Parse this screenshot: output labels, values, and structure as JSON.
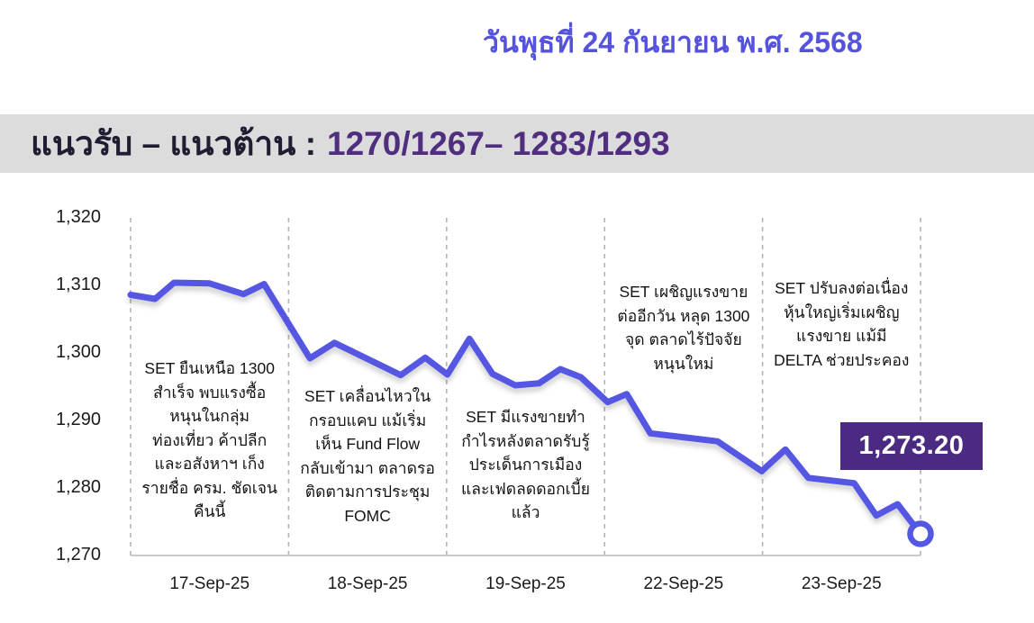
{
  "header": {
    "date": "วันพุธที่ 24 กันยายน พ.ศ. 2568"
  },
  "banner": {
    "label": "แนวรับ – แนวต้าน :",
    "values": "1270/1267– 1283/1293",
    "label_color": "#201c31",
    "values_color": "#4F2D7F",
    "background_color": "#dcdcdc"
  },
  "chart_data": {
    "type": "line",
    "title": "",
    "xlabel": "",
    "ylabel": "",
    "ylim": [
      1270,
      1320
    ],
    "grid": "vertical-dashed-section-dividers",
    "line_color": "#5457E2",
    "badge_color": "#4B2B82",
    "y_ticks": [
      "1,320",
      "1,310",
      "1,300",
      "1,290",
      "1,280",
      "1,270"
    ],
    "y_tick_values": [
      1320,
      1310,
      1300,
      1290,
      1280,
      1270
    ],
    "x_categories": [
      "17-Sep-25",
      "18-Sep-25",
      "19-Sep-25",
      "22-Sep-25",
      "23-Sep-25"
    ],
    "points": [
      [
        0.0,
        1308.6
      ],
      [
        0.031,
        1308.0
      ],
      [
        0.055,
        1310.4
      ],
      [
        0.1,
        1310.3
      ],
      [
        0.143,
        1308.7
      ],
      [
        0.169,
        1310.2
      ],
      [
        0.227,
        1299.2
      ],
      [
        0.258,
        1301.5
      ],
      [
        0.342,
        1296.7
      ],
      [
        0.373,
        1299.3
      ],
      [
        0.401,
        1296.8
      ],
      [
        0.429,
        1302.1
      ],
      [
        0.458,
        1296.9
      ],
      [
        0.487,
        1295.2
      ],
      [
        0.517,
        1295.5
      ],
      [
        0.544,
        1297.6
      ],
      [
        0.57,
        1296.4
      ],
      [
        0.604,
        1292.7
      ],
      [
        0.628,
        1293.9
      ],
      [
        0.658,
        1288.1
      ],
      [
        0.743,
        1286.9
      ],
      [
        0.799,
        1282.5
      ],
      [
        0.829,
        1285.7
      ],
      [
        0.858,
        1281.5
      ],
      [
        0.916,
        1280.7
      ],
      [
        0.944,
        1275.9
      ],
      [
        0.971,
        1277.6
      ],
      [
        1.0,
        1273.2
      ]
    ],
    "last_value_label": "1,273.20",
    "annotations": [
      "SET ยืนเหนือ 1300\nสำเร็จ พบแรงซื้อ\nหนุนในกลุ่ม\nท่องเที่ยว ค้าปลีก\nและอสังหาฯ เก็ง\nรายชื่อ ครม. ชัดเจน\nคืนนี้",
      "SET เคลื่อนไหวใน\nกรอบแคบ แม้เริ่ม\nเห็น Fund Flow\nกลับเข้ามา ตลาดรอ\nติดตามการประชุม\nFOMC",
      "SET มีแรงขายทำ\nกำไรหลังตลาดรับรู้\nประเด็นการเมือง\nและเฟดลดดอกเบี้ย\nแล้ว",
      "SET เผชิญแรงขาย\nต่ออีกวัน หลุด 1300\nจุด ตลาดไร้ปัจจัย\nหนุนใหม่",
      "SET ปรับลงต่อเนื่อง\nหุ้นใหญ่เริ่มเผชิญ\nแรงขาย แม้มี\nDELTA ช่วยประคอง"
    ],
    "annotation_tops": [
      396,
      427,
      450,
      311,
      307
    ],
    "annotation_widths": [
      176,
      176,
      178,
      184,
      184
    ]
  }
}
